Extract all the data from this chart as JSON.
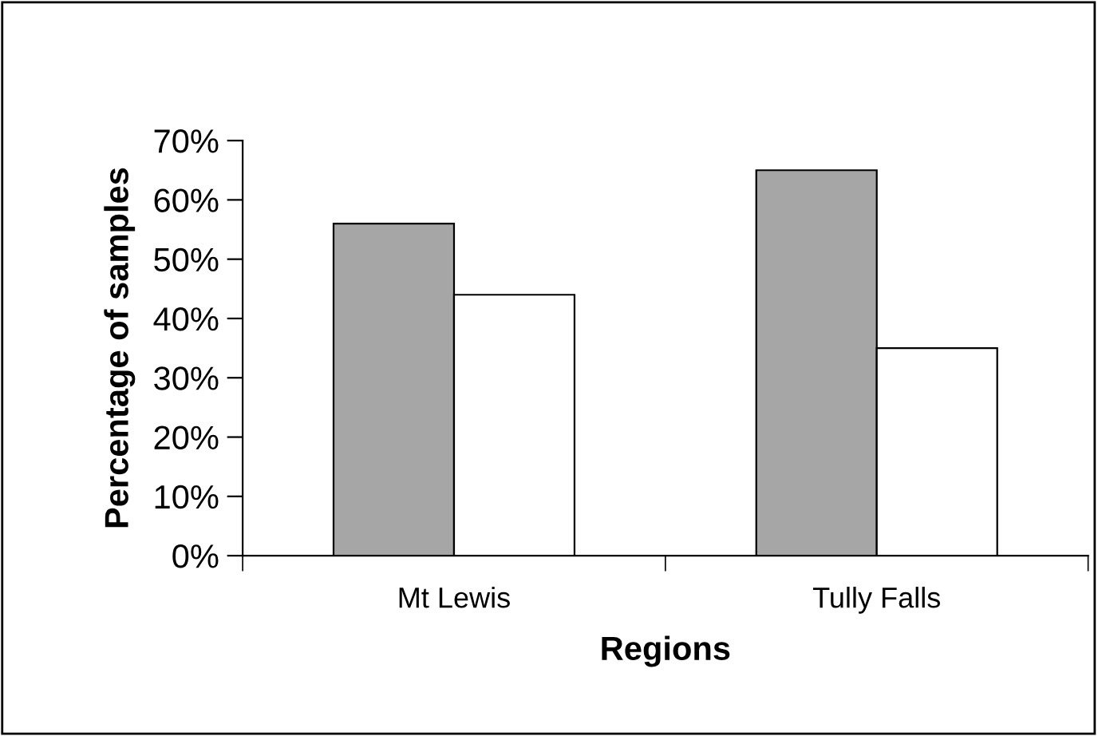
{
  "chart_data": {
    "type": "bar",
    "xlabel": "Regions",
    "ylabel": "Percentage of samples",
    "categories": [
      "Mt Lewis",
      "Tully Falls"
    ],
    "series": [
      {
        "color": "#a6a6a6",
        "values": [
          56,
          65
        ]
      },
      {
        "color": "#ffffff",
        "values": [
          44,
          35
        ]
      }
    ],
    "ylim": [
      0,
      70
    ],
    "yticks": [
      {
        "value": 0,
        "label": "0%"
      },
      {
        "value": 10,
        "label": "10%"
      },
      {
        "value": 20,
        "label": "20%"
      },
      {
        "value": 30,
        "label": "30%"
      },
      {
        "value": 40,
        "label": "40%"
      },
      {
        "value": 50,
        "label": "50%"
      },
      {
        "value": 60,
        "label": "60%"
      },
      {
        "value": 70,
        "label": "70%"
      }
    ],
    "grid": false
  }
}
